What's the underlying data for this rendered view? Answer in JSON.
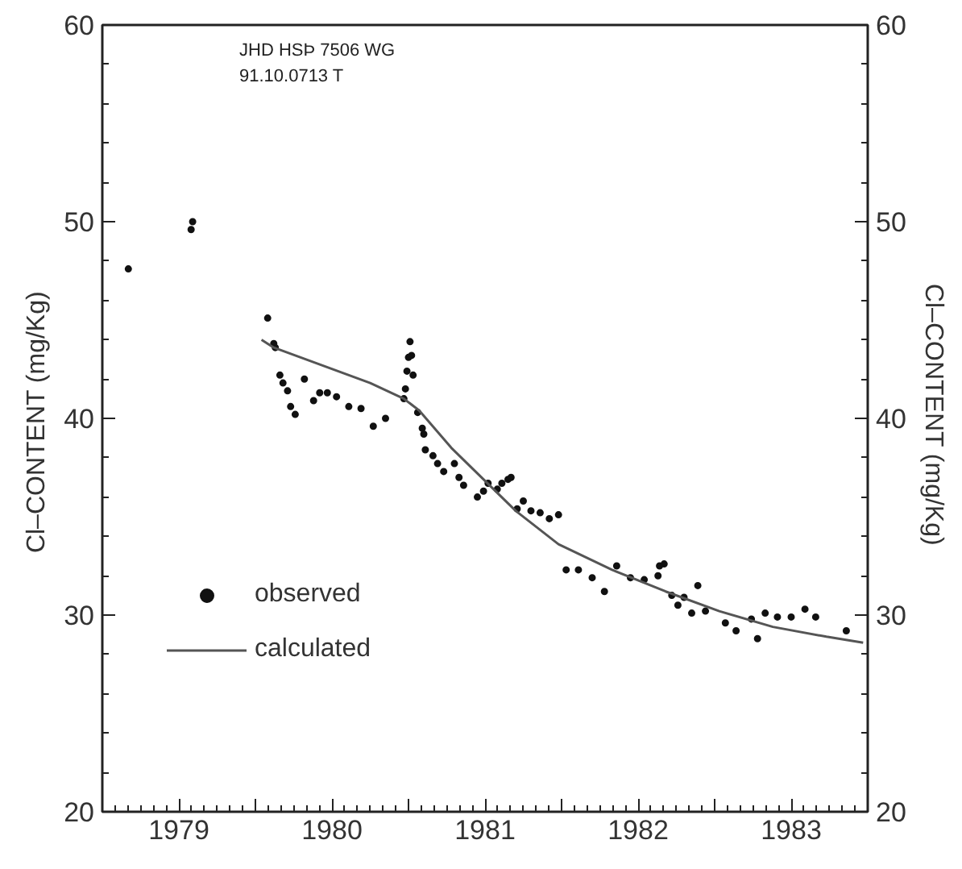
{
  "chart_data": {
    "type": "scatter",
    "ylabel": "Cl–CONTENT  (mg/Kg)",
    "y2label": "Cl–CONTENT  (mg/Kg)",
    "annotations": [
      "JHD HSÞ 7506 WG",
      "91.10.0713 T"
    ],
    "xlim": [
      1979,
      1984
    ],
    "xticks": [
      {
        "value": 1979.5,
        "label": "1979"
      },
      {
        "value": 1980,
        "label": null
      },
      {
        "value": 1980.5,
        "label": "1980"
      },
      {
        "value": 1981,
        "label": null
      },
      {
        "value": 1981.5,
        "label": "1981"
      },
      {
        "value": 1982,
        "label": null
      },
      {
        "value": 1982.5,
        "label": "1982"
      },
      {
        "value": 1983,
        "label": null
      },
      {
        "value": 1983.5,
        "label": "1983"
      }
    ],
    "ylim": [
      20,
      60
    ],
    "yticks": [
      20,
      30,
      40,
      50,
      60
    ],
    "y2lim": [
      20,
      60
    ],
    "y2ticks": [
      20,
      30,
      40,
      50,
      60
    ],
    "grid": false,
    "legend": "bottom left",
    "series": [
      {
        "name": "observed",
        "marker": "circle",
        "color": "#111111",
        "x": [
          1979.17,
          1979.58,
          1979.59,
          1980.08,
          1980.12,
          1980.13,
          1980.16,
          1980.18,
          1980.21,
          1980.23,
          1980.26,
          1980.32,
          1980.38,
          1980.42,
          1980.47,
          1980.53,
          1980.61,
          1980.69,
          1980.77,
          1980.85,
          1980.97,
          1980.98,
          1980.99,
          1981.0,
          1981.01,
          1981.02,
          1981.03,
          1981.06,
          1981.09,
          1981.1,
          1981.11,
          1981.16,
          1981.19,
          1981.23,
          1981.3,
          1981.33,
          1981.36,
          1981.45,
          1981.49,
          1981.52,
          1981.58,
          1981.61,
          1981.65,
          1981.67,
          1981.71,
          1981.75,
          1981.8,
          1981.86,
          1981.92,
          1981.98,
          1982.03,
          1982.11,
          1982.2,
          1982.28,
          1982.36,
          1982.45,
          1982.54,
          1982.63,
          1982.64,
          1982.67,
          1982.72,
          1982.76,
          1982.8,
          1982.85,
          1982.89,
          1982.94,
          1983.07,
          1983.14,
          1983.24,
          1983.28,
          1983.33,
          1983.41,
          1983.5,
          1983.59,
          1983.66,
          1983.86
        ],
        "values": [
          47.6,
          49.6,
          50.0,
          45.1,
          43.8,
          43.6,
          42.2,
          41.8,
          41.4,
          40.6,
          40.2,
          42.0,
          40.9,
          41.3,
          41.3,
          41.1,
          40.6,
          40.5,
          39.6,
          40.0,
          41.0,
          41.5,
          42.4,
          43.1,
          43.9,
          43.2,
          42.2,
          40.3,
          39.5,
          39.2,
          38.4,
          38.1,
          37.7,
          37.3,
          37.7,
          37.0,
          36.6,
          36.0,
          36.3,
          36.7,
          36.4,
          36.7,
          36.9,
          37.0,
          35.4,
          35.8,
          35.3,
          35.2,
          34.9,
          35.1,
          32.3,
          32.3,
          31.9,
          31.2,
          32.5,
          31.9,
          31.8,
          32.0,
          32.5,
          32.6,
          31.0,
          30.5,
          30.9,
          30.1,
          31.5,
          30.2,
          29.6,
          29.2,
          29.8,
          28.8,
          30.1,
          29.9,
          29.9,
          30.3,
          29.9,
          29.2
        ]
      },
      {
        "name": "calculated",
        "type": "line",
        "line_style": "solid",
        "color": "#555555",
        "x": [
          1980.04,
          1980.12,
          1980.75,
          1980.97,
          1981.07,
          1981.28,
          1981.49,
          1981.7,
          1981.98,
          1982.33,
          1982.68,
          1983.03,
          1983.38,
          1983.73,
          1983.97
        ],
        "values": [
          44.0,
          43.6,
          41.8,
          41.0,
          40.4,
          38.5,
          36.9,
          35.3,
          33.6,
          32.3,
          31.2,
          30.2,
          29.4,
          28.9,
          28.6
        ]
      }
    ]
  }
}
